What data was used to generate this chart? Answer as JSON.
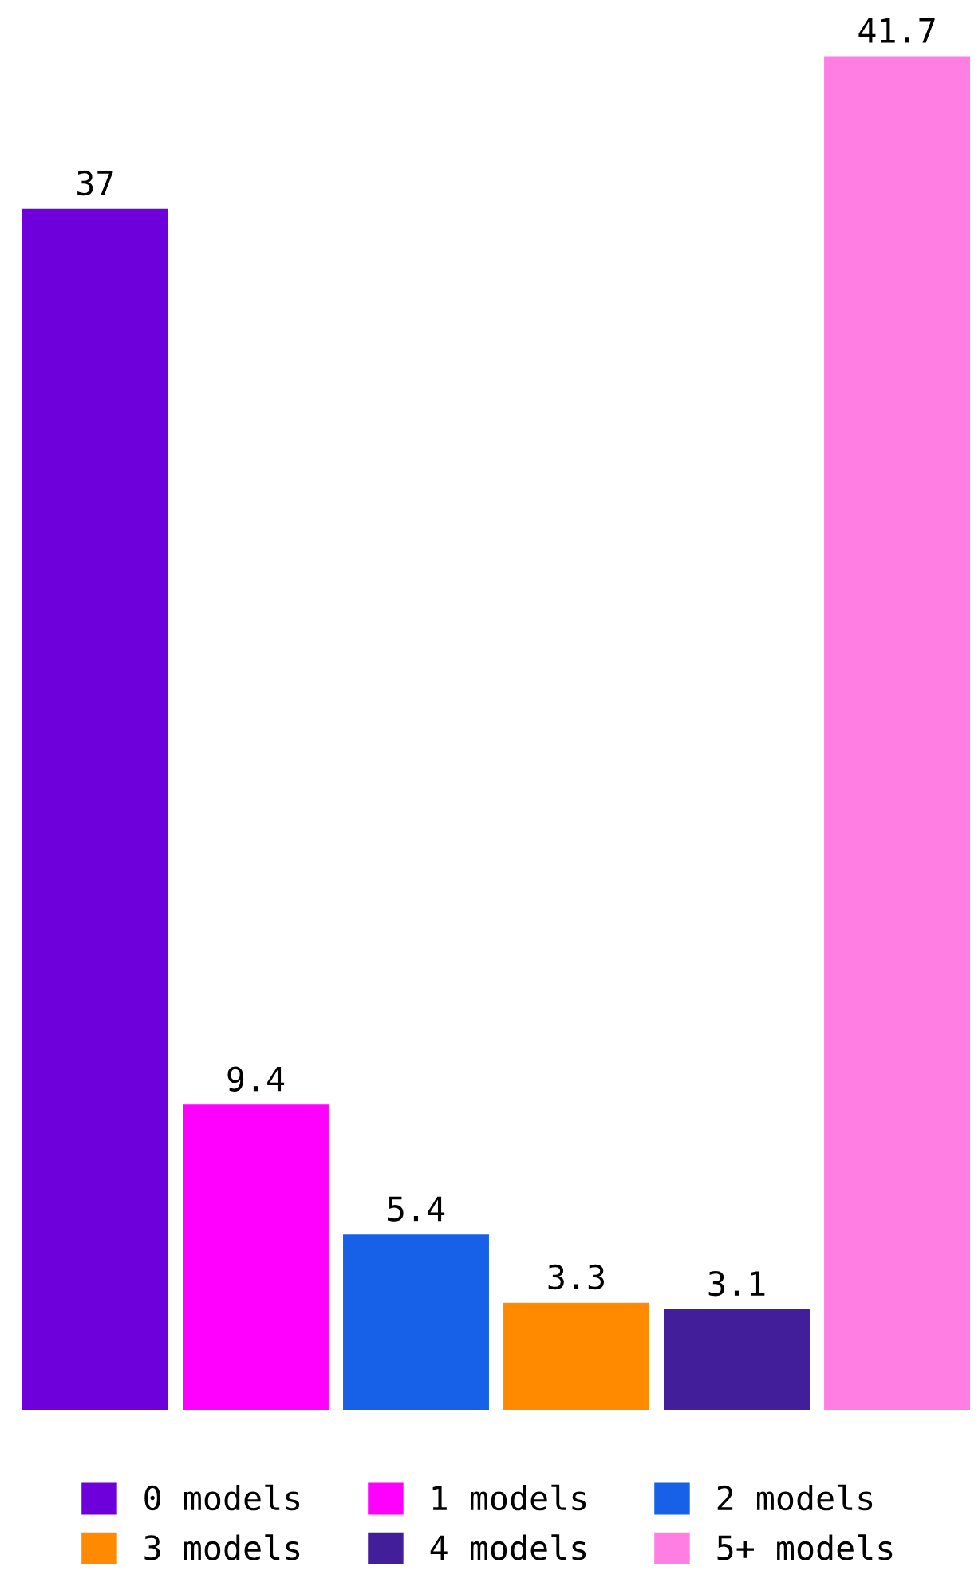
{
  "chart_data": {
    "type": "bar",
    "categories": [
      null
    ],
    "series": [
      {
        "name": "0 models",
        "color": "#6e00dc",
        "values": [
          37
        ]
      },
      {
        "name": "1 models",
        "color": "#ff00ff",
        "values": [
          9.4
        ]
      },
      {
        "name": "2 models",
        "color": "#1760e8",
        "values": [
          5.4
        ]
      },
      {
        "name": "3 models",
        "color": "#ff8a00",
        "values": [
          3.3
        ]
      },
      {
        "name": "4 models",
        "color": "#421e9b",
        "values": [
          3.1
        ]
      },
      {
        "name": "5+ models",
        "color": "#ff7ee3",
        "values": [
          41.7
        ]
      }
    ],
    "data_labels": true,
    "legend": "bottom"
  }
}
